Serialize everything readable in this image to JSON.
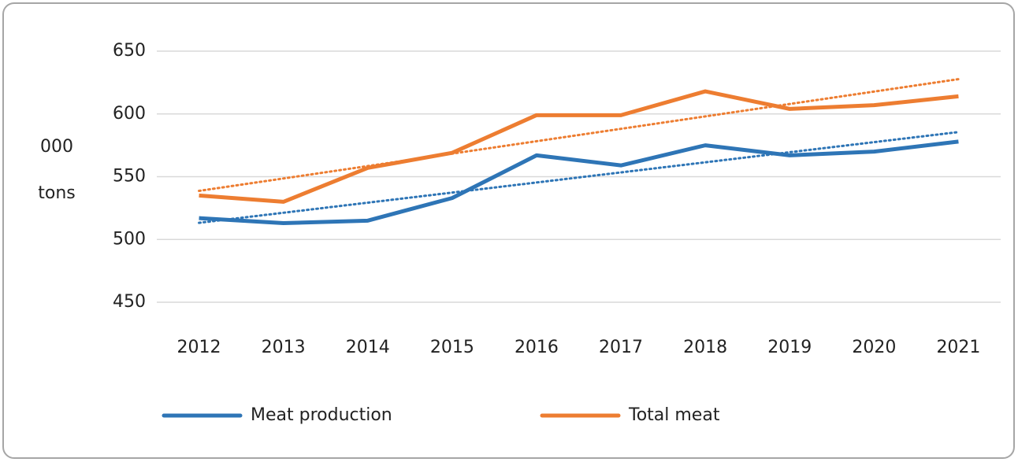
{
  "chart_data": {
    "type": "line",
    "ylabel": [
      "000",
      "tons"
    ],
    "categories": [
      "2012",
      "2013",
      "2014",
      "2015",
      "2016",
      "2017",
      "2018",
      "2019",
      "2020",
      "2021"
    ],
    "series": [
      {
        "name": "Meat production",
        "color": "#2e75b6",
        "values": [
          517,
          513,
          515,
          533,
          567,
          559,
          575,
          567,
          570,
          578
        ]
      },
      {
        "name": "Total meat",
        "color": "#ed7d31",
        "values": [
          535,
          530,
          557,
          569,
          599,
          599,
          618,
          604,
          607,
          614
        ]
      }
    ],
    "ylim": [
      450,
      650
    ],
    "yticks": [
      450,
      500,
      550,
      600,
      650
    ],
    "grid": true,
    "trendline": "linear",
    "legend": "bottom"
  }
}
